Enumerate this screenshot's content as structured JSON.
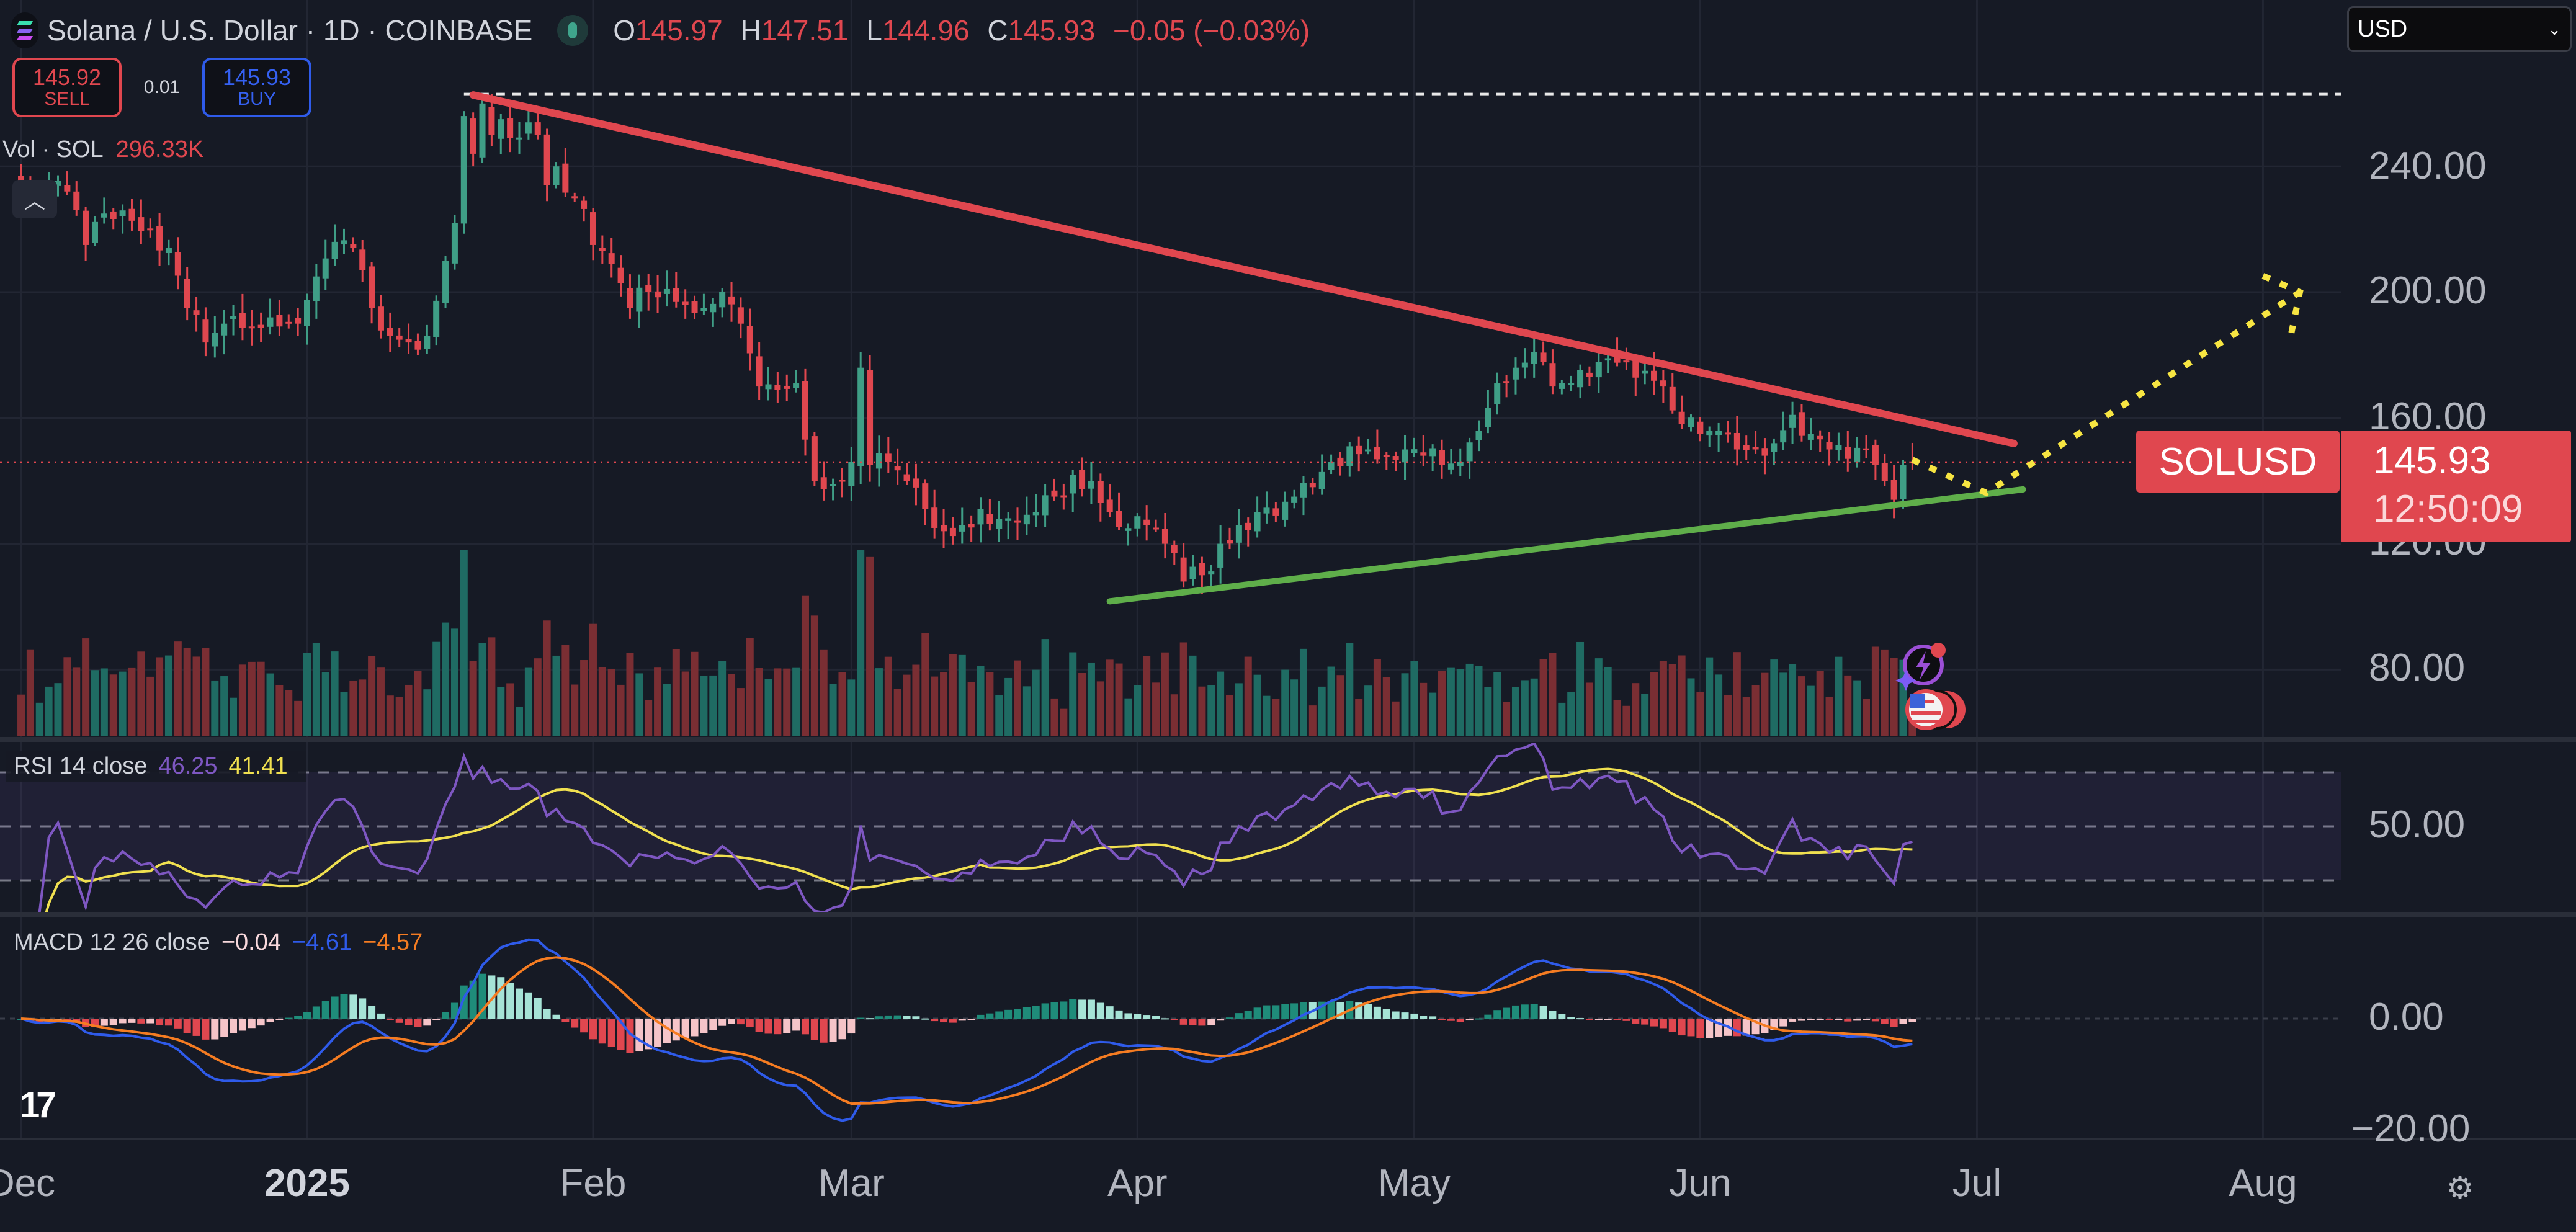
{
  "header": {
    "title": "Solana / U.S. Dollar · 1D · COINBASE",
    "ohlc": [
      {
        "key": "O",
        "value": "145.97"
      },
      {
        "key": "H",
        "value": "147.51"
      },
      {
        "key": "L",
        "value": "144.96"
      },
      {
        "key": "C",
        "value": "145.93"
      }
    ],
    "change": "−0.05 (−0.03%)"
  },
  "trade": {
    "sell_price": "145.92",
    "sell_label": "SELL",
    "spread": "0.01",
    "buy_price": "145.93",
    "buy_label": "BUY"
  },
  "volume": {
    "label": "Vol · SOL",
    "value": "296.33K"
  },
  "collapse_icon": "chevron-up-icon",
  "currency_select": {
    "value": "USD"
  },
  "price_label": {
    "symbol": "SOLUSD",
    "price": "145.93",
    "countdown": "12:50:09"
  },
  "rsi": {
    "label": "RSI 14 close",
    "value": "46.25",
    "ma_value": "41.41",
    "tick": "50.00"
  },
  "macd": {
    "label": "MACD 12 26 close",
    "hist": "−0.04",
    "macd": "−4.61",
    "signal": "−4.57",
    "ticks": [
      "0.00",
      "−20.00"
    ]
  },
  "colors": {
    "up": "#3f9e86",
    "down": "#e0474f",
    "background": "#161a25",
    "rsi": "#7e57c2",
    "rsi_ma": "#f0e050",
    "macd": "#2f5bea",
    "signal": "#f57c22",
    "trend_resistance": "#e0474f",
    "trend_support": "#5fae4a",
    "projection": "#f7e542"
  },
  "x_axis": [
    {
      "label": "Dec",
      "date": "2024-12-01",
      "bold": false
    },
    {
      "label": "2025",
      "date": "2025-01-01",
      "bold": true
    },
    {
      "label": "Feb",
      "date": "2025-02-01",
      "bold": false
    },
    {
      "label": "Mar",
      "date": "2025-03-01",
      "bold": false
    },
    {
      "label": "Apr",
      "date": "2025-04-01",
      "bold": false
    },
    {
      "label": "May",
      "date": "2025-05-01",
      "bold": false
    },
    {
      "label": "Jun",
      "date": "2025-06-01",
      "bold": false
    },
    {
      "label": "Jul",
      "date": "2025-07-01",
      "bold": false
    },
    {
      "label": "Aug",
      "date": "2025-08-01",
      "bold": false
    }
  ],
  "chart_data": {
    "type": "candlestick",
    "symbol": "SOLUSD",
    "interval": "1D",
    "y_ticks": [
      "240.00",
      "200.00",
      "160.00",
      "120.00",
      "80.00"
    ],
    "y_tick_values": [
      240,
      200,
      160,
      120,
      80
    ],
    "grid": true,
    "closes": [
      [
        "2024-12-01",
        235
      ],
      [
        "2024-12-03",
        230
      ],
      [
        "2024-12-06",
        232
      ],
      [
        "2024-12-08",
        215
      ],
      [
        "2024-12-10",
        225
      ],
      [
        "2024-12-12",
        226
      ],
      [
        "2024-12-15",
        220
      ],
      [
        "2024-12-17",
        214
      ],
      [
        "2024-12-19",
        195
      ],
      [
        "2024-12-21",
        184
      ],
      [
        "2024-12-23",
        190
      ],
      [
        "2024-12-26",
        189
      ],
      [
        "2024-12-28",
        192
      ],
      [
        "2024-12-31",
        190
      ],
      [
        "2025-01-02",
        205
      ],
      [
        "2025-01-04",
        216
      ],
      [
        "2025-01-06",
        214
      ],
      [
        "2025-01-08",
        195
      ],
      [
        "2025-01-10",
        186
      ],
      [
        "2025-01-12",
        184
      ],
      [
        "2025-01-14",
        186
      ],
      [
        "2025-01-16",
        210
      ],
      [
        "2025-01-17",
        222
      ],
      [
        "2025-01-18",
        256
      ],
      [
        "2025-01-19",
        244
      ],
      [
        "2025-01-20",
        260
      ],
      [
        "2025-01-21",
        250
      ],
      [
        "2025-01-22",
        255
      ],
      [
        "2025-01-23",
        249
      ],
      [
        "2025-01-25",
        254
      ],
      [
        "2025-01-26",
        250
      ],
      [
        "2025-01-27",
        234
      ],
      [
        "2025-01-28",
        240
      ],
      [
        "2025-01-30",
        230
      ],
      [
        "2025-02-01",
        215
      ],
      [
        "2025-02-03",
        209
      ],
      [
        "2025-02-05",
        195
      ],
      [
        "2025-02-07",
        200
      ],
      [
        "2025-02-09",
        201
      ],
      [
        "2025-02-11",
        196
      ],
      [
        "2025-02-13",
        195
      ],
      [
        "2025-02-15",
        200
      ],
      [
        "2025-02-17",
        190
      ],
      [
        "2025-02-19",
        170
      ],
      [
        "2025-02-21",
        169
      ],
      [
        "2025-02-23",
        171
      ],
      [
        "2025-02-25",
        140
      ],
      [
        "2025-02-27",
        139
      ],
      [
        "2025-03-01",
        146
      ],
      [
        "2025-03-02",
        176
      ],
      [
        "2025-03-03",
        145
      ],
      [
        "2025-03-05",
        146
      ],
      [
        "2025-03-07",
        140
      ],
      [
        "2025-03-09",
        131
      ],
      [
        "2025-03-11",
        124
      ],
      [
        "2025-03-13",
        126
      ],
      [
        "2025-03-15",
        131
      ],
      [
        "2025-03-17",
        128
      ],
      [
        "2025-03-19",
        127
      ],
      [
        "2025-03-21",
        130
      ],
      [
        "2025-03-23",
        135
      ],
      [
        "2025-03-25",
        142
      ],
      [
        "2025-03-27",
        140
      ],
      [
        "2025-03-29",
        130
      ],
      [
        "2025-03-31",
        125
      ],
      [
        "2025-04-02",
        126
      ],
      [
        "2025-04-04",
        120
      ],
      [
        "2025-04-06",
        108
      ],
      [
        "2025-04-08",
        110
      ],
      [
        "2025-04-10",
        120
      ],
      [
        "2025-04-12",
        126
      ],
      [
        "2025-04-14",
        130
      ],
      [
        "2025-04-16",
        129
      ],
      [
        "2025-04-18",
        135
      ],
      [
        "2025-04-20",
        138
      ],
      [
        "2025-04-22",
        146
      ],
      [
        "2025-04-24",
        151
      ],
      [
        "2025-04-26",
        150
      ],
      [
        "2025-04-28",
        148
      ],
      [
        "2025-04-30",
        150
      ],
      [
        "2025-05-02",
        148
      ],
      [
        "2025-05-04",
        145
      ],
      [
        "2025-05-06",
        146
      ],
      [
        "2025-05-08",
        156
      ],
      [
        "2025-05-10",
        171
      ],
      [
        "2025-05-12",
        176
      ],
      [
        "2025-05-14",
        181
      ],
      [
        "2025-05-16",
        170
      ],
      [
        "2025-05-18",
        171
      ],
      [
        "2025-05-20",
        173
      ],
      [
        "2025-05-22",
        179
      ],
      [
        "2025-05-24",
        178
      ],
      [
        "2025-05-26",
        175
      ],
      [
        "2025-05-28",
        170
      ],
      [
        "2025-05-30",
        158
      ],
      [
        "2025-06-01",
        155
      ],
      [
        "2025-06-03",
        156
      ],
      [
        "2025-06-05",
        150
      ],
      [
        "2025-06-07",
        150
      ],
      [
        "2025-06-09",
        152
      ],
      [
        "2025-06-11",
        161
      ],
      [
        "2025-06-13",
        155
      ],
      [
        "2025-06-15",
        150
      ],
      [
        "2025-06-17",
        147
      ],
      [
        "2025-06-19",
        150
      ],
      [
        "2025-06-21",
        140
      ],
      [
        "2025-06-22",
        134
      ],
      [
        "2025-06-23",
        145
      ],
      [
        "2025-06-24",
        145.93
      ]
    ],
    "previous_high_line": {
      "price": 263,
      "from": "2025-01-18"
    },
    "current_price": 145.93,
    "drawings": {
      "resistance": [
        [
          "2025-01-19",
          262.7
        ],
        [
          "2025-07-05",
          151.9
        ]
      ],
      "support": [
        [
          "2025-03-29",
          101.7
        ],
        [
          "2025-07-06",
          137.3
        ]
      ],
      "projection": [
        [
          "2025-06-24",
          146.7
        ],
        [
          "2025-07-02",
          136.2
        ],
        [
          "2025-08-05",
          200
        ]
      ],
      "projection_arrow": [
        [
          "2025-08-01",
          205.2
        ],
        [
          "2025-08-05",
          200
        ],
        [
          "2025-08-04",
          185.9
        ]
      ]
    },
    "rsi_levels": [
      70,
      50,
      30
    ]
  }
}
